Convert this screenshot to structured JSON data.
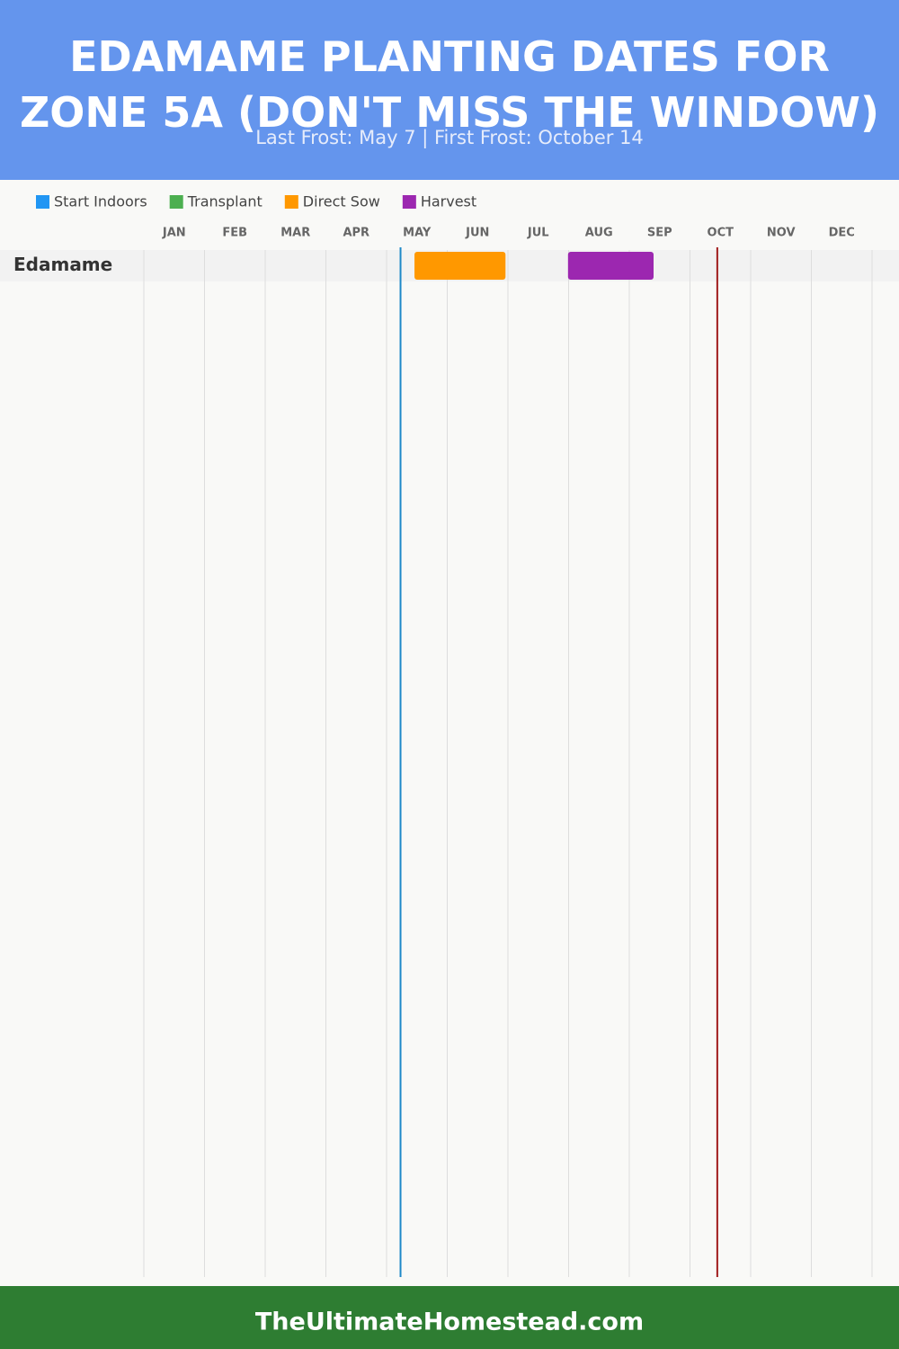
{
  "chart_data": {
    "type": "gantt",
    "title": "EDAMAME PLANTING DATES FOR ZONE 5A (DON'T MISS THE WINDOW)",
    "subtitle": "Last Frost: May 7 | First Frost: October 14",
    "categories": [
      "JAN",
      "FEB",
      "MAR",
      "APR",
      "MAY",
      "JUN",
      "JUL",
      "AUG",
      "SEP",
      "OCT",
      "NOV",
      "DEC"
    ],
    "xlim": [
      0,
      12
    ],
    "grid": true,
    "series": [
      {
        "name": "Start Indoors",
        "color": "#2196f3"
      },
      {
        "name": "Transplant",
        "color": "#4caf50"
      },
      {
        "name": "Direct Sow",
        "color": "#ff9800"
      },
      {
        "name": "Harvest",
        "color": "#9c27b0"
      }
    ],
    "rows": [
      {
        "name": "Edamame",
        "bars": [
          {
            "series": 2,
            "start": 4.46,
            "end": 5.96
          },
          {
            "series": 3,
            "start": 6.99,
            "end": 8.4
          }
        ]
      }
    ],
    "frost_lines": [
      {
        "value": 4.23,
        "color": "#1e88c8"
      },
      {
        "value": 9.45,
        "color": "#a01c1c"
      }
    ]
  },
  "footer": "TheUltimateHomestead.com"
}
